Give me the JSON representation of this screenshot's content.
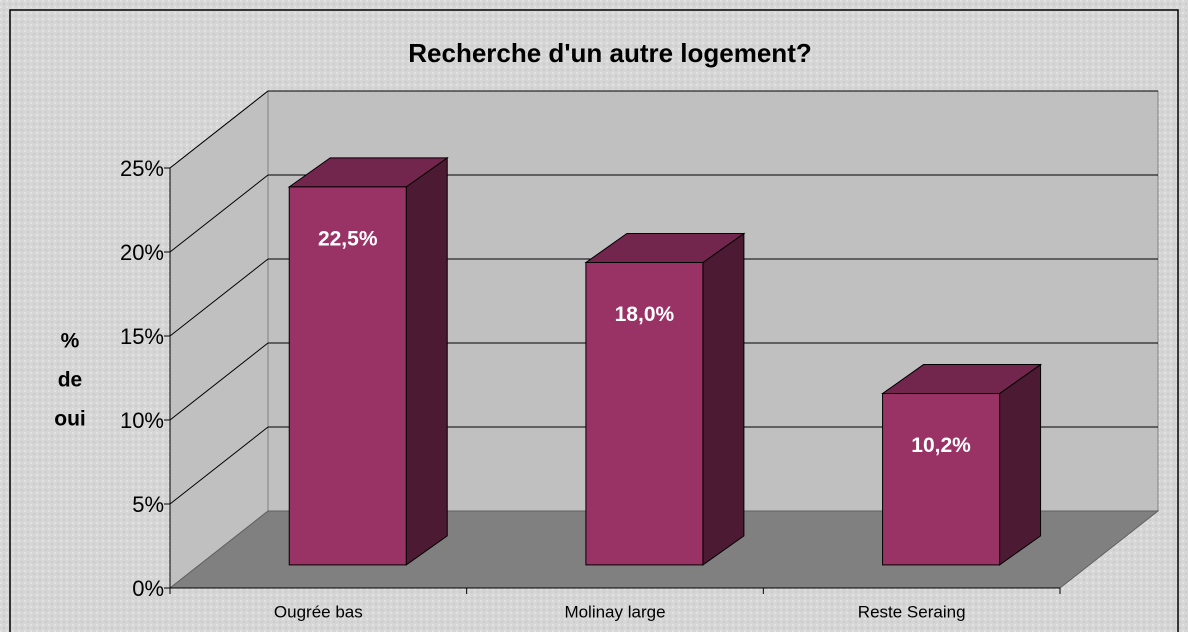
{
  "chart_data": {
    "type": "bar3d",
    "title": "Recherche d'un autre logement?",
    "y_label_lines": [
      "%",
      "de",
      "oui"
    ],
    "categories": [
      "Ougrée bas",
      "Molinay large",
      "Reste Seraing"
    ],
    "values": [
      22.5,
      18.0,
      10.2
    ],
    "value_labels": [
      "22,5%",
      "18,0%",
      "10,2%"
    ],
    "color": "#993366",
    "ylim": [
      0,
      25
    ],
    "yticks": [
      {
        "value": 0,
        "label": "0%"
      },
      {
        "value": 5,
        "label": "5%"
      },
      {
        "value": 10,
        "label": "10%"
      },
      {
        "value": 15,
        "label": "15%"
      },
      {
        "value": 20,
        "label": "20%"
      },
      {
        "value": 25,
        "label": "25%"
      }
    ],
    "grid": true
  }
}
